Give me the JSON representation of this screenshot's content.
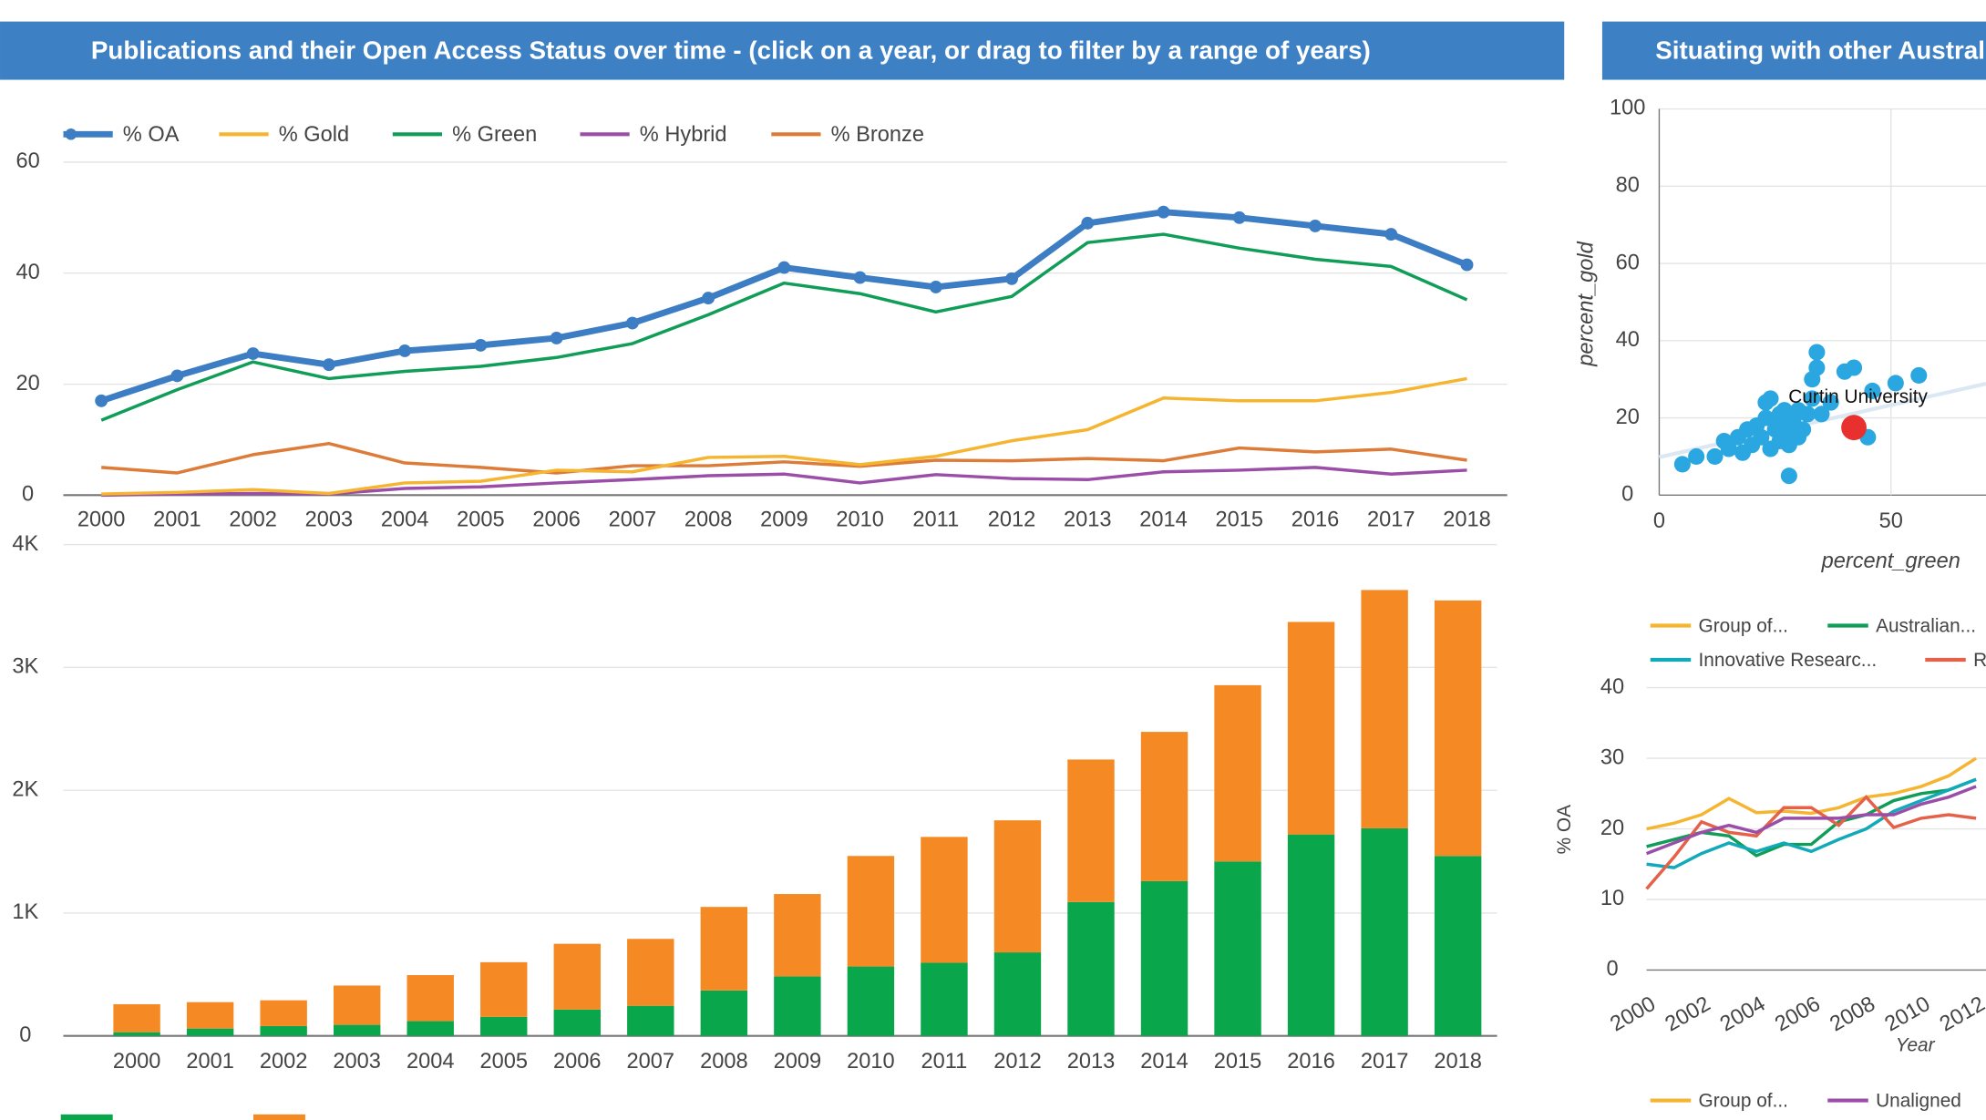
{
  "chart_data": [
    {
      "type": "line",
      "title": "Publications and their Open Access Status over time - (click on a year, or drag to filter by a range of years)",
      "categories": [
        "2000",
        "2001",
        "2002",
        "2003",
        "2004",
        "2005",
        "2006",
        "2007",
        "2008",
        "2009",
        "2010",
        "2011",
        "2012",
        "2013",
        "2014",
        "2015",
        "2016",
        "2017",
        "2018"
      ],
      "ylim": [
        0,
        60
      ],
      "yticks": [
        0,
        20,
        40,
        60
      ],
      "grid": true,
      "series": [
        {
          "name": "% OA",
          "color": "#3c7dc4",
          "values": [
            17,
            21.5,
            25.5,
            23.5,
            26,
            27,
            28.3,
            31,
            35.5,
            41,
            39.2,
            37.5,
            39,
            49,
            51,
            50,
            48.5,
            47,
            41.5
          ]
        },
        {
          "name": "% Gold",
          "color": "#f5b531",
          "values": [
            0.2,
            0.5,
            1,
            0.3,
            2.2,
            2.5,
            4.5,
            4.2,
            6.8,
            7,
            5.5,
            7,
            9.8,
            11.8,
            17.5,
            17,
            17,
            18.5,
            21
          ]
        },
        {
          "name": "% Green",
          "color": "#0f9d58",
          "values": [
            13.5,
            19,
            24,
            21,
            22.3,
            23.2,
            24.8,
            27.3,
            32.5,
            38.2,
            36.3,
            33,
            35.8,
            45.5,
            47,
            44.5,
            42.5,
            41.2,
            35.2
          ]
        },
        {
          "name": "% Hybrid",
          "color": "#9b4ea8",
          "values": [
            0,
            0.2,
            0.3,
            0.2,
            1.2,
            1.5,
            2.2,
            2.8,
            3.5,
            3.8,
            2.2,
            3.7,
            3,
            2.8,
            4.2,
            4.5,
            5,
            3.8,
            4.5
          ]
        },
        {
          "name": "% Bronze",
          "color": "#dd7b38",
          "values": [
            5,
            4,
            7.3,
            9.3,
            5.8,
            5,
            4,
            5.3,
            5.3,
            6,
            5.2,
            6.3,
            6.2,
            6.6,
            6.2,
            8.5,
            7.8,
            8.3,
            6.3
          ]
        }
      ]
    },
    {
      "type": "stacked_bar",
      "categories": [
        "2000",
        "2001",
        "2002",
        "2003",
        "2004",
        "2005",
        "2006",
        "2007",
        "2008",
        "2009",
        "2010",
        "2011",
        "2012",
        "2013",
        "2014",
        "2015",
        "2016",
        "2017",
        "2018"
      ],
      "ylim": [
        0,
        4000
      ],
      "yticks": [
        0,
        {
          "value": 1000,
          "label": "1K"
        },
        {
          "value": 2000,
          "label": "2K"
        },
        {
          "value": 3000,
          "label": "3K"
        },
        {
          "value": 4000,
          "label": "4K"
        }
      ],
      "grid": true,
      "series": [
        {
          "color": "#0aa64b",
          "values": [
            30,
            60,
            80,
            90,
            120,
            155,
            215,
            245,
            370,
            485,
            565,
            595,
            680,
            1090,
            1260,
            1420,
            1640,
            1690,
            1465
          ]
        },
        {
          "color": "#f58a24",
          "values": [
            228,
            215,
            210,
            320,
            375,
            445,
            535,
            545,
            680,
            670,
            900,
            1025,
            1075,
            1160,
            1215,
            1435,
            1730,
            1940,
            2080
          ]
        }
      ]
    },
    {
      "type": "scatter",
      "title": "Situating with other Austral",
      "xlabel": "percent_green",
      "ylabel": "percent_gold",
      "xlim": [
        0,
        70
      ],
      "xticks": [
        0,
        50
      ],
      "ylim": [
        0,
        100
      ],
      "yticks": [
        0,
        20,
        40,
        60,
        80,
        100
      ],
      "grid": true,
      "series": [
        {
          "color": "#2aa7e0",
          "x": [
            5,
            8,
            12,
            14,
            15,
            17,
            18,
            19,
            20,
            21,
            22,
            23,
            23,
            24,
            24,
            25,
            25,
            26,
            26,
            27,
            27,
            28,
            28,
            28,
            29,
            30,
            30,
            31,
            32,
            33,
            33,
            34,
            34,
            35,
            37,
            40,
            42,
            45,
            46,
            51,
            56
          ],
          "y": [
            8,
            10,
            10,
            14,
            12,
            15,
            11,
            17,
            13,
            18,
            15,
            20,
            24,
            25,
            12,
            17,
            19,
            14,
            21,
            16,
            22,
            5,
            18,
            13,
            20,
            15,
            22,
            17,
            21,
            25,
            30,
            37,
            33,
            21,
            24,
            32,
            33,
            15,
            27,
            29,
            31
          ]
        }
      ],
      "highlight": {
        "label": "Curtin University",
        "x": 42,
        "y": 17.5,
        "color": "#e8312f"
      }
    },
    {
      "type": "line",
      "xlabel": "Year",
      "ylabel": "% OA",
      "x": [
        2000,
        2001,
        2002,
        2003,
        2004,
        2005,
        2006,
        2007,
        2008,
        2009,
        2010,
        2011,
        2012
      ],
      "xlim": [
        2000,
        2012.5
      ],
      "xticks": [
        2000,
        2002,
        2004,
        2006,
        2008,
        2010,
        2012
      ],
      "ylim": [
        0,
        40
      ],
      "yticks": [
        0,
        10,
        20,
        30,
        40
      ],
      "grid": true,
      "series": [
        {
          "name": "Group of...",
          "color": "#f5b531",
          "values": [
            20,
            20.8,
            22,
            24.3,
            22.3,
            22.5,
            22.2,
            23,
            24.5,
            25,
            26,
            27.5,
            30
          ]
        },
        {
          "name": "Australian...",
          "color": "#0f9d58",
          "values": [
            17.5,
            18.5,
            19.5,
            19,
            16.2,
            17.8,
            17.8,
            21,
            22,
            24,
            25,
            25.5,
            27
          ]
        },
        {
          "name": "Innovative Researc...",
          "color": "#12a9b8",
          "values": [
            15,
            14.5,
            16.5,
            18,
            16.8,
            18,
            16.8,
            18.5,
            20,
            22.5,
            24,
            25.5,
            27
          ]
        },
        {
          "name": "R...",
          "color": "#e4614a",
          "values": [
            11.5,
            16,
            21,
            19.5,
            19,
            23,
            23,
            20.5,
            24.5,
            20.2,
            21.5,
            22,
            21.5
          ]
        },
        {
          "color": "#9b4ea8",
          "values": [
            16.5,
            18,
            19.5,
            20.5,
            19.5,
            21.5,
            21.5,
            21.5,
            22,
            22,
            23.5,
            24.5,
            26
          ]
        }
      ]
    },
    {
      "type": "legend",
      "series": [
        {
          "name": "Group of...",
          "color": "#f5b531"
        },
        {
          "name": "Unaligned",
          "color": "#9b4ea8"
        }
      ]
    }
  ]
}
